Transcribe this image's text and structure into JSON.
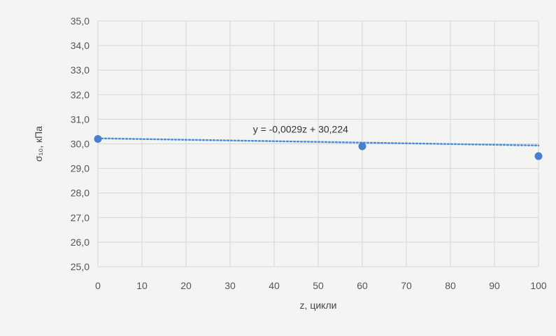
{
  "chart_data": {
    "type": "scatter",
    "xlabel": "z, цикли",
    "ylabel": "σ₁₀, кПа",
    "xlim": [
      0,
      100
    ],
    "ylim": [
      25,
      35
    ],
    "xticks": [
      0,
      10,
      20,
      30,
      40,
      50,
      60,
      70,
      80,
      90,
      100
    ],
    "yticks": [
      25,
      26,
      27,
      28,
      29,
      30,
      31,
      32,
      33,
      34,
      35
    ],
    "xtick_labels": [
      "0",
      "10",
      "20",
      "30",
      "40",
      "50",
      "60",
      "70",
      "80",
      "90",
      "100"
    ],
    "ytick_labels": [
      "25,0",
      "26,0",
      "27,0",
      "28,0",
      "29,0",
      "30,0",
      "31,0",
      "32,0",
      "33,0",
      "34,0",
      "35,0"
    ],
    "grid": true,
    "series": [
      {
        "points": [
          {
            "x": 0,
            "y": 30.2
          },
          {
            "x": 60,
            "y": 29.9
          },
          {
            "x": 100,
            "y": 29.5
          }
        ],
        "color": "#4a7fd0"
      }
    ],
    "trendline": {
      "type": "linear",
      "slope": -0.0029,
      "intercept": 30.224,
      "equation": "y = -0,0029z + 30,224",
      "color": "#4a90d9"
    }
  }
}
